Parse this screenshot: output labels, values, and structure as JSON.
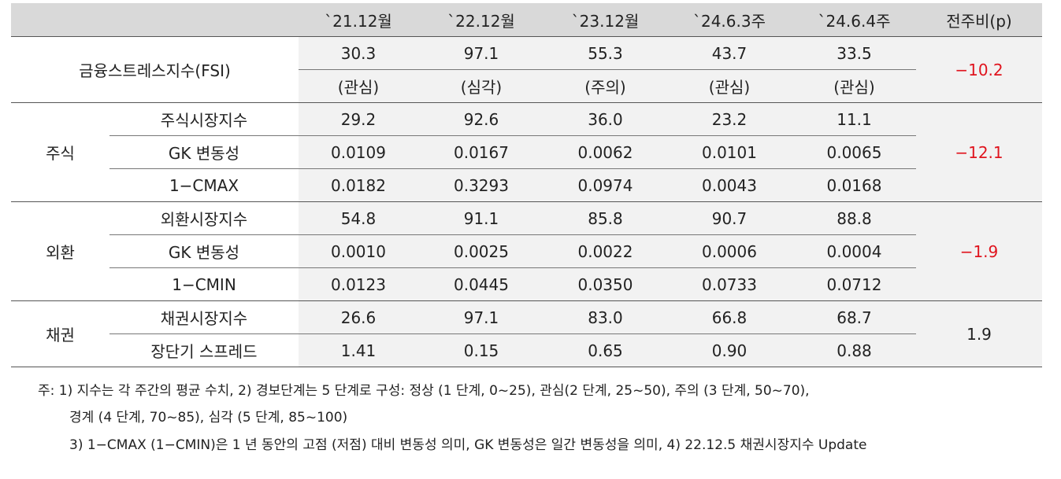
{
  "header": [
    "",
    "`21.12월",
    "`22.12월",
    "`23.12월",
    "`24.6.3주",
    "`24.6.4주",
    "전주비(p)"
  ],
  "fsi": {
    "label": "금융스트레스지수(FSI)",
    "values": [
      "30.3",
      "97.1",
      "55.3",
      "43.7",
      "33.5"
    ],
    "levels": [
      "(관심)",
      "(심각)",
      "(주의)",
      "(관심)",
      "(관심)"
    ],
    "change": "−10.2"
  },
  "groups": [
    {
      "name": "주식",
      "change": "−12.1",
      "rows": [
        {
          "label": "주식시장지수",
          "values": [
            "29.2",
            "92.6",
            "36.0",
            "23.2",
            "11.1"
          ]
        },
        {
          "label": "GK 변동성",
          "values": [
            "0.0109",
            "0.0167",
            "0.0062",
            "0.0101",
            "0.0065"
          ]
        },
        {
          "label": "1−CMAX",
          "values": [
            "0.0182",
            "0.3293",
            "0.0974",
            "0.0043",
            "0.0168"
          ]
        }
      ]
    },
    {
      "name": "외환",
      "change": "−1.9",
      "rows": [
        {
          "label": "외환시장지수",
          "values": [
            "54.8",
            "91.1",
            "85.8",
            "90.7",
            "88.8"
          ]
        },
        {
          "label": "GK 변동성",
          "values": [
            "0.0010",
            "0.0025",
            "0.0022",
            "0.0006",
            "0.0004"
          ]
        },
        {
          "label": "1−CMIN",
          "values": [
            "0.0123",
            "0.0445",
            "0.0350",
            "0.0733",
            "0.0712"
          ]
        }
      ]
    },
    {
      "name": "채권",
      "change": "1.9",
      "rows": [
        {
          "label": "채권시장지수",
          "values": [
            "26.6",
            "97.1",
            "83.0",
            "66.8",
            "68.7"
          ]
        },
        {
          "label": "장단기 스프레드",
          "values": [
            "1.41",
            "0.15",
            "0.65",
            "0.90",
            "0.88"
          ]
        }
      ]
    }
  ],
  "notes": [
    "주: 1) 지수는 각 주간의 평균 수치, 2) 경보단계는 5 단계로 구성: 정상 (1 단계, 0~25), 관심(2 단계, 25~50), 주의 (3 단계, 50~70),",
    "경계 (4 단계, 70~85), 심각 (5 단계, 85~100)",
    "3) 1−CMAX (1−CMIN)은 1 년 동안의 고점 (저점) 대비 변동성 의미, GK 변동성은 일간 변동성을 의미, 4) 22.12.5 채권시장지수 Update"
  ],
  "colors": {
    "header_bg": "#d9d9d9",
    "shade_bg": "#f2f2f2",
    "negative": "#e0141e",
    "rule": "#555555"
  }
}
